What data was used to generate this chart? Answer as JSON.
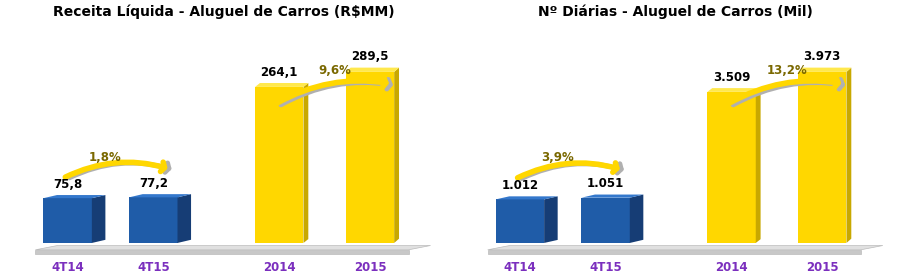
{
  "chart1": {
    "title": "Receita Líquida - Aluguel de Carros (R$MM)",
    "categories": [
      "4T14",
      "4T15",
      "2014",
      "2015"
    ],
    "values": [
      75.8,
      77.2,
      264.1,
      289.5
    ],
    "labels": [
      "75,8",
      "77,2",
      "264,1",
      "289,5"
    ],
    "colors": [
      "#1F5CA8",
      "#1F5CA8",
      "#FFD700",
      "#FFD700"
    ],
    "arrow1_label": "1,8%",
    "arrow2_label": "9,6%"
  },
  "chart2": {
    "title": "Nº Diárias - Aluguel de Carros (Mil)",
    "categories": [
      "4T14",
      "4T15",
      "2014",
      "2015"
    ],
    "values": [
      1012,
      1051,
      3509,
      3973
    ],
    "labels": [
      "1.012",
      "1.051",
      "3.509",
      "3.973"
    ],
    "colors": [
      "#1F5CA8",
      "#1F5CA8",
      "#FFD700",
      "#FFD700"
    ],
    "arrow1_label": "3,9%",
    "arrow2_label": "13,2%"
  },
  "bg_color": "#FFFFFF",
  "label_fontsize": 8.5,
  "title_fontsize": 10,
  "arrow_yellow": "#FFD700",
  "arrow_shadow": "#B0B0B0",
  "arrow_label_color": "#7A6800",
  "xlabel_color": "#7B2FBE",
  "bar_blue_front": "#1F5CA8",
  "bar_blue_side": "#163D75",
  "bar_blue_top": "#3478CC",
  "bar_yellow_front": "#FFD700",
  "bar_yellow_side": "#C8A800",
  "bar_yellow_top": "#FFE84D",
  "platform_top": "#E0E0E0",
  "platform_front": "#C8C8C8"
}
